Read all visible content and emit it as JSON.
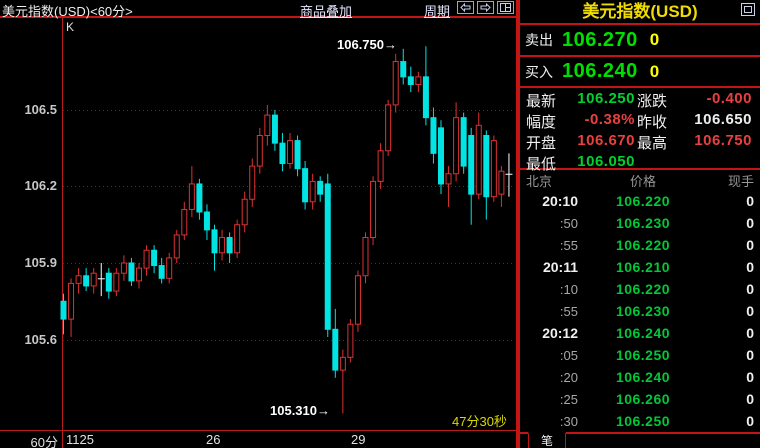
{
  "titlebar": {
    "title": "美元指数(USD)<60分>",
    "overlay_btn": "商品叠加",
    "period_btn": "周期",
    "icon_buttons": [
      "left-arrow",
      "right-arrow",
      "split-window"
    ]
  },
  "chart_data": {
    "type": "candlestick",
    "k_label": "K",
    "period_label": "60分",
    "ylim": [
      105.24,
      106.86
    ],
    "grid": "horizontal-dashed",
    "y_ticks": [
      "106.5",
      "106.2",
      "105.9",
      "105.6"
    ],
    "x_ticks": [
      {
        "label": "1125",
        "x": 66
      },
      {
        "label": "26",
        "x": 206
      },
      {
        "label": "29",
        "x": 351
      }
    ],
    "high_annotation": "106.750→",
    "low_annotation": "105.310→",
    "countdown": "47分30秒",
    "price_high": 106.75,
    "price_low": 105.31,
    "candles": [
      [
        105.75,
        105.78,
        105.62,
        105.68
      ],
      [
        105.68,
        105.84,
        105.61,
        105.82
      ],
      [
        105.82,
        105.88,
        105.78,
        105.85
      ],
      [
        105.85,
        105.88,
        105.79,
        105.81
      ],
      [
        105.81,
        105.88,
        105.78,
        105.86
      ],
      [
        105.84,
        105.9,
        105.77,
        105.84,
        "w"
      ],
      [
        105.86,
        105.88,
        105.76,
        105.79
      ],
      [
        105.79,
        105.88,
        105.77,
        105.86
      ],
      [
        105.86,
        105.93,
        105.83,
        105.9
      ],
      [
        105.9,
        105.92,
        105.81,
        105.83
      ],
      [
        105.83,
        105.9,
        105.8,
        105.88
      ],
      [
        105.88,
        105.97,
        105.85,
        105.95
      ],
      [
        105.95,
        105.97,
        105.86,
        105.89
      ],
      [
        105.89,
        105.92,
        105.82,
        105.84
      ],
      [
        105.84,
        105.94,
        105.82,
        105.92
      ],
      [
        105.92,
        106.03,
        105.9,
        106.01
      ],
      [
        106.01,
        106.14,
        105.99,
        106.11
      ],
      [
        106.11,
        106.28,
        106.08,
        106.21
      ],
      [
        106.21,
        106.23,
        106.07,
        106.1
      ],
      [
        106.1,
        106.13,
        105.99,
        106.03
      ],
      [
        106.03,
        106.05,
        105.87,
        105.94
      ],
      [
        105.94,
        106.03,
        105.91,
        106.0
      ],
      [
        106.0,
        106.02,
        105.9,
        105.94
      ],
      [
        105.94,
        106.07,
        105.92,
        106.05
      ],
      [
        106.05,
        106.18,
        106.02,
        106.15
      ],
      [
        106.15,
        106.31,
        106.12,
        106.28
      ],
      [
        106.28,
        106.43,
        106.25,
        106.4
      ],
      [
        106.4,
        106.52,
        106.36,
        106.48
      ],
      [
        106.48,
        106.5,
        106.34,
        106.37
      ],
      [
        106.37,
        106.41,
        106.26,
        106.29
      ],
      [
        106.29,
        106.41,
        106.27,
        106.38
      ],
      [
        106.38,
        106.4,
        106.24,
        106.27
      ],
      [
        106.27,
        106.3,
        106.11,
        106.14
      ],
      [
        106.14,
        106.25,
        106.11,
        106.22
      ],
      [
        106.22,
        106.24,
        106.14,
        106.17
      ],
      [
        106.21,
        106.25,
        105.61,
        105.64
      ],
      [
        105.64,
        105.72,
        105.45,
        105.48
      ],
      [
        105.48,
        105.56,
        105.31,
        105.53
      ],
      [
        105.53,
        105.68,
        105.51,
        105.66
      ],
      [
        105.66,
        105.87,
        105.63,
        105.85
      ],
      [
        105.85,
        106.02,
        105.82,
        106.0
      ],
      [
        106.0,
        106.24,
        105.97,
        106.22
      ],
      [
        106.22,
        106.37,
        106.19,
        106.34
      ],
      [
        106.34,
        106.54,
        106.32,
        106.52
      ],
      [
        106.52,
        106.72,
        106.49,
        106.69
      ],
      [
        106.69,
        106.74,
        106.6,
        106.63
      ],
      [
        106.63,
        106.67,
        106.57,
        106.6
      ],
      [
        106.6,
        106.65,
        106.57,
        106.63
      ],
      [
        106.63,
        106.75,
        106.44,
        106.47
      ],
      [
        106.47,
        106.51,
        106.29,
        106.33
      ],
      [
        106.43,
        106.46,
        106.17,
        106.21
      ],
      [
        106.21,
        106.28,
        106.12,
        106.25
      ],
      [
        106.25,
        106.53,
        106.22,
        106.47
      ],
      [
        106.47,
        106.49,
        106.25,
        106.28
      ],
      [
        106.4,
        106.43,
        106.05,
        106.17
      ],
      [
        106.17,
        106.49,
        106.15,
        106.44
      ],
      [
        106.4,
        106.42,
        106.07,
        106.16
      ],
      [
        106.16,
        106.4,
        106.14,
        106.38
      ],
      [
        106.17,
        106.28,
        106.12,
        106.26
      ],
      [
        106.2,
        106.33,
        106.16,
        106.25,
        "w"
      ]
    ]
  },
  "quote_panel": {
    "title": "美元指数(USD)",
    "sell_label": "卖出",
    "sell_price": "106.270",
    "sell_qty": "0",
    "buy_label": "买入",
    "buy_price": "106.240",
    "buy_qty": "0",
    "stats": [
      {
        "label": "最新",
        "value": "106.250",
        "color": "green"
      },
      {
        "label": "涨跌",
        "value": "-0.400",
        "color": "red"
      },
      {
        "label": "幅度",
        "value": "-0.38%",
        "color": "red"
      },
      {
        "label": "昨收",
        "value": "106.650",
        "color": "white"
      },
      {
        "label": "开盘",
        "value": "106.670",
        "color": "red"
      },
      {
        "label": "最高",
        "value": "106.750",
        "color": "red"
      },
      {
        "label": "最低",
        "value": "106.050",
        "color": "green"
      }
    ],
    "tape": {
      "headers": [
        "北京",
        "价格",
        "现手"
      ],
      "rows": [
        [
          "20:10",
          "106.220",
          "0"
        ],
        [
          ":50",
          "106.230",
          "0"
        ],
        [
          ":55",
          "106.220",
          "0"
        ],
        [
          "20:11",
          "106.210",
          "0"
        ],
        [
          ":10",
          "106.220",
          "0"
        ],
        [
          ":55",
          "106.230",
          "0"
        ],
        [
          "20:12",
          "106.240",
          "0"
        ],
        [
          ":05",
          "106.250",
          "0"
        ],
        [
          ":20",
          "106.240",
          "0"
        ],
        [
          ":25",
          "106.260",
          "0"
        ],
        [
          ":30",
          "106.250",
          "0"
        ]
      ]
    },
    "tab_label": "笔"
  },
  "colors": {
    "up": "#dd3232",
    "down": "#00e4e4",
    "white_candle": "#ffffff",
    "grid": "#7d1a1a",
    "axis": "#b91c1c",
    "border": "#c41414",
    "title_yellow": "#f0dc00",
    "qty_yellow": "#ffff00",
    "price_green": "#00d22d",
    "value_red": "#e84040"
  }
}
